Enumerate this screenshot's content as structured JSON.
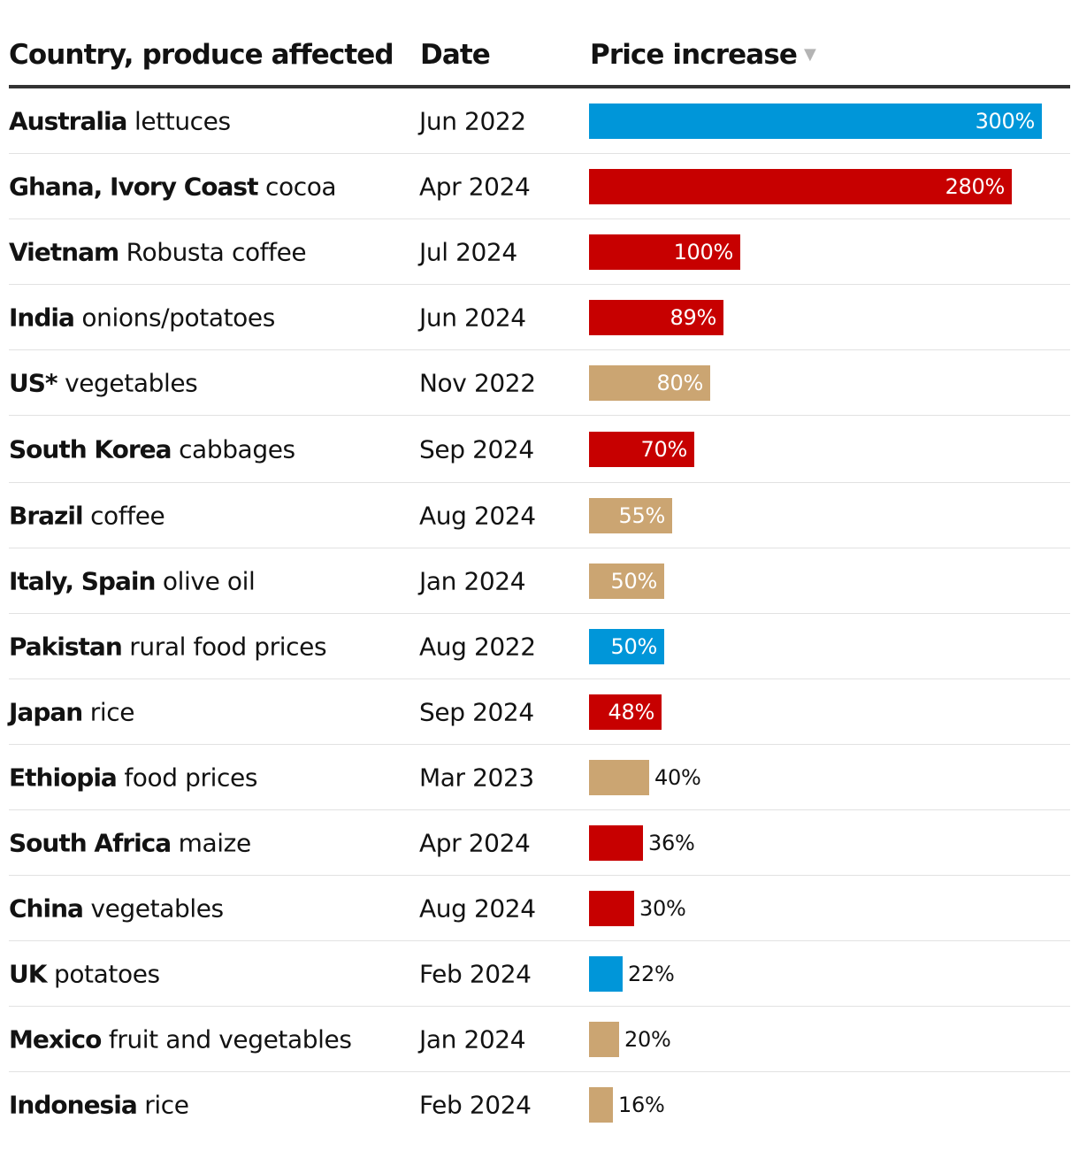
{
  "chart_data": {
    "type": "table",
    "columns": [
      "Country, produce affected",
      "Date",
      "Price increase"
    ],
    "sort_column": "Price increase",
    "sort_direction": "descending",
    "colors": {
      "blue": "#0096d9",
      "red": "#c70000",
      "tan": "#cba572"
    },
    "rows": [
      {
        "country": "Australia",
        "produce": "lettuces",
        "date": "Jun 2022",
        "value": 300,
        "label": "300%",
        "color": "blue"
      },
      {
        "country": "Ghana, Ivory Coast",
        "produce": "cocoa",
        "date": "Apr 2024",
        "value": 280,
        "label": "280%",
        "color": "red"
      },
      {
        "country": "Vietnam",
        "produce": "Robusta coffee",
        "date": "Jul 2024",
        "value": 100,
        "label": "100%",
        "color": "red"
      },
      {
        "country": "India",
        "produce": "onions/potatoes",
        "date": "Jun 2024",
        "value": 89,
        "label": "89%",
        "color": "red"
      },
      {
        "country": "US*",
        "produce": "vegetables",
        "date": "Nov 2022",
        "value": 80,
        "label": "80%",
        "color": "tan"
      },
      {
        "country": "South Korea",
        "produce": "cabbages",
        "date": "Sep 2024",
        "value": 70,
        "label": "70%",
        "color": "red"
      },
      {
        "country": "Brazil",
        "produce": "coffee",
        "date": "Aug 2024",
        "value": 55,
        "label": "55%",
        "color": "tan"
      },
      {
        "country": "Italy, Spain",
        "produce": "olive oil",
        "date": "Jan 2024",
        "value": 50,
        "label": "50%",
        "color": "tan"
      },
      {
        "country": "Pakistan",
        "produce": "rural food prices",
        "date": "Aug 2022",
        "value": 50,
        "label": "50%",
        "color": "blue"
      },
      {
        "country": "Japan",
        "produce": "rice",
        "date": "Sep 2024",
        "value": 48,
        "label": "48%",
        "color": "red"
      },
      {
        "country": "Ethiopia",
        "produce": "food prices",
        "date": "Mar 2023",
        "value": 40,
        "label": "40%",
        "color": "tan"
      },
      {
        "country": "South Africa",
        "produce": "maize",
        "date": "Apr 2024",
        "value": 36,
        "label": "36%",
        "color": "red"
      },
      {
        "country": "China",
        "produce": "vegetables",
        "date": "Aug 2024",
        "value": 30,
        "label": "30%",
        "color": "red"
      },
      {
        "country": "UK",
        "produce": "potatoes",
        "date": "Feb 2024",
        "value": 22,
        "label": "22%",
        "color": "blue"
      },
      {
        "country": "Mexico",
        "produce": "fruit and vegetables",
        "date": "Jan 2024",
        "value": 20,
        "label": "20%",
        "color": "tan"
      },
      {
        "country": "Indonesia",
        "produce": "rice",
        "date": "Feb 2024",
        "value": 16,
        "label": "16%",
        "color": "tan"
      }
    ]
  }
}
